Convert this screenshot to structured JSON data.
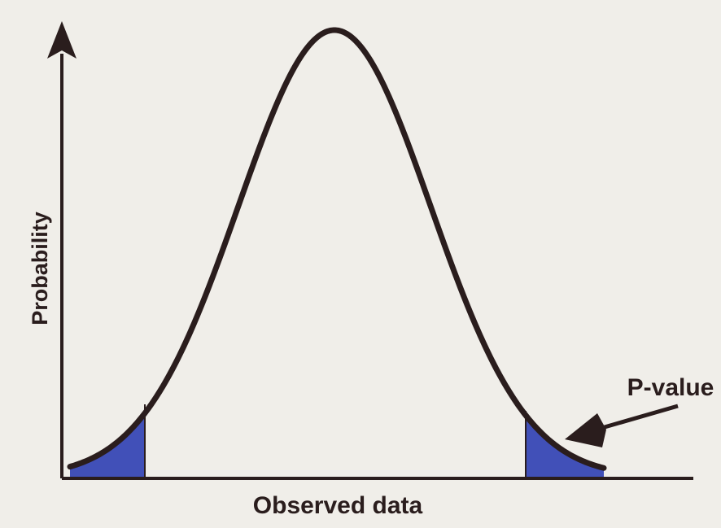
{
  "diagram": {
    "x_axis_label": "Observed data",
    "y_axis_label": "Probability",
    "annotation_label": "P-value",
    "colors": {
      "background": "#f0eee9",
      "curve": "#2a1d1d",
      "tail_fill": "#4150b8",
      "text": "#2a1d1d"
    }
  }
}
